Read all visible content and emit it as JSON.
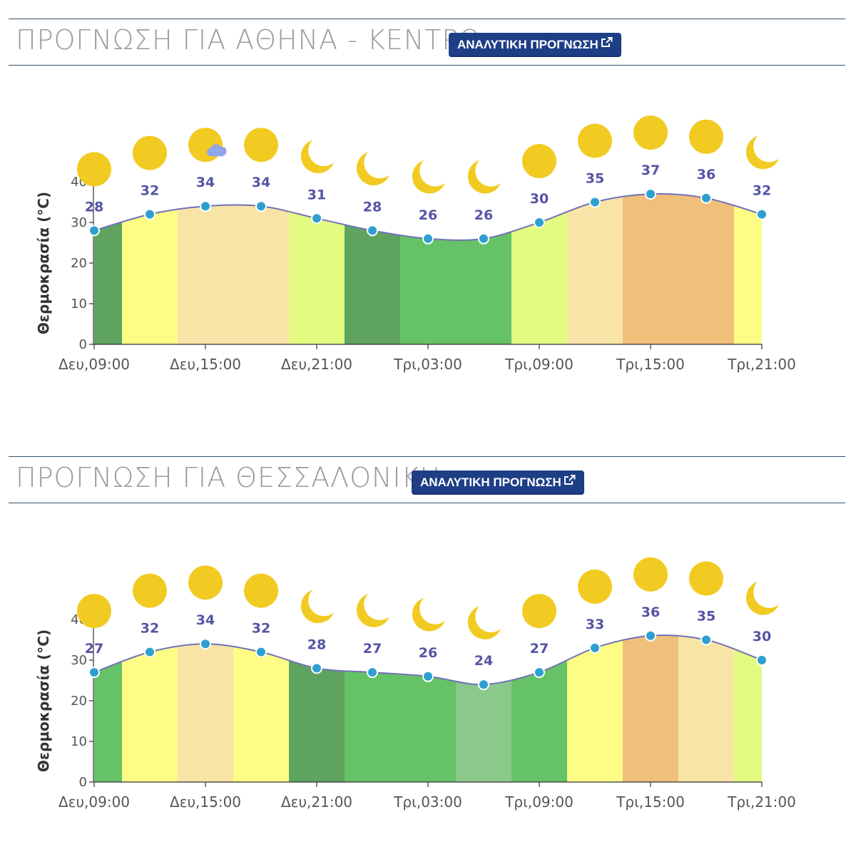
{
  "forecasts": [
    {
      "title": "ΠΡΟΓΝΩΣΗ ΓΙΑ ΑΘΗΝΑ - ΚΕΝΤΡΟ",
      "button_label": "ΑΝΑΛΥΤΙΚΗ ΠΡΟΓΝΩΣΗ",
      "button_icon": "external-link-icon",
      "icons": [
        "sun-icon",
        "sun-icon",
        "sun-cloud-icon",
        "sun-icon",
        "moon-icon",
        "moon-icon",
        "moon-icon",
        "moon-icon",
        "sun-icon",
        "sun-icon",
        "sun-icon",
        "sun-icon",
        "moon-icon"
      ]
    },
    {
      "title": "ΠΡΟΓΝΩΣΗ ΓΙΑ ΘΕΣΣΑΛΟΝΙΚΗ",
      "button_label": "ΑΝΑΛΥΤΙΚΗ ΠΡΟΓΝΩΣΗ",
      "button_icon": "external-link-icon",
      "icons": [
        "sun-icon",
        "sun-icon",
        "sun-icon",
        "sun-icon",
        "moon-icon",
        "moon-icon",
        "moon-icon",
        "moon-icon",
        "sun-icon",
        "sun-icon",
        "sun-icon",
        "sun-icon",
        "moon-icon"
      ]
    }
  ],
  "colors": {
    "dark_green": "#5ea35e",
    "green": "#66c266",
    "light_green": "#8ac98a",
    "lime": "#e3fb80",
    "yellow": "#fdfd86",
    "beige": "#f8e4a6",
    "orange": "#f0c07b",
    "line": "#7171b9",
    "point": "#2f9fd0",
    "label": "#5454a6",
    "sun": "#f1cb22",
    "cloud": "#8fa6e8",
    "header_rule": "#34506e",
    "button_bg": "#1e3f86"
  },
  "chart_data": [
    {
      "type": "area",
      "ylabel": "Θερμοκρασία (°C)",
      "ylim": [
        0,
        40
      ],
      "yticks": [
        0,
        10,
        20,
        30,
        40
      ],
      "x": [
        "Δευ,09:00",
        "Δευ,12:00",
        "Δευ,15:00",
        "Δευ,18:00",
        "Δευ,21:00",
        "Τρι,00:00",
        "Τρι,03:00",
        "Τρι,06:00",
        "Τρι,09:00",
        "Τρι,12:00",
        "Τρι,15:00",
        "Τρι,18:00",
        "Τρι,21:00"
      ],
      "xtick_labels": [
        {
          "index": 0,
          "label": "Δευ,09:00"
        },
        {
          "index": 2,
          "label": "Δευ,15:00"
        },
        {
          "index": 4,
          "label": "Δευ,21:00"
        },
        {
          "index": 6,
          "label": "Τρι,03:00"
        },
        {
          "index": 8,
          "label": "Τρι,09:00"
        },
        {
          "index": 10,
          "label": "Τρι,15:00"
        },
        {
          "index": 12,
          "label": "Τρι,21:00"
        }
      ],
      "values": [
        28,
        32,
        34,
        34,
        31,
        28,
        26,
        26,
        30,
        35,
        37,
        36,
        32
      ],
      "band_colors": [
        "dark_green",
        "yellow",
        "beige",
        "beige",
        "lime",
        "dark_green",
        "green",
        "green",
        "lime",
        "beige",
        "orange",
        "orange",
        "yellow"
      ],
      "grid": false,
      "legend": "none"
    },
    {
      "type": "area",
      "ylabel": "Θερμοκρασία (°C)",
      "ylim": [
        0,
        40
      ],
      "yticks": [
        0,
        10,
        20,
        30,
        40
      ],
      "x": [
        "Δευ,09:00",
        "Δευ,12:00",
        "Δευ,15:00",
        "Δευ,18:00",
        "Δευ,21:00",
        "Τρι,00:00",
        "Τρι,03:00",
        "Τρι,06:00",
        "Τρι,09:00",
        "Τρι,12:00",
        "Τρι,15:00",
        "Τρι,18:00",
        "Τρι,21:00"
      ],
      "xtick_labels": [
        {
          "index": 0,
          "label": "Δευ,09:00"
        },
        {
          "index": 2,
          "label": "Δευ,15:00"
        },
        {
          "index": 4,
          "label": "Δευ,21:00"
        },
        {
          "index": 6,
          "label": "Τρι,03:00"
        },
        {
          "index": 8,
          "label": "Τρι,09:00"
        },
        {
          "index": 10,
          "label": "Τρι,15:00"
        },
        {
          "index": 12,
          "label": "Τρι,21:00"
        }
      ],
      "values": [
        27,
        32,
        34,
        32,
        28,
        27,
        26,
        24,
        27,
        33,
        36,
        35,
        30
      ],
      "band_colors": [
        "green",
        "yellow",
        "beige",
        "yellow",
        "dark_green",
        "green",
        "green",
        "light_green",
        "green",
        "yellow",
        "orange",
        "beige",
        "lime"
      ],
      "grid": false,
      "legend": "none"
    }
  ]
}
